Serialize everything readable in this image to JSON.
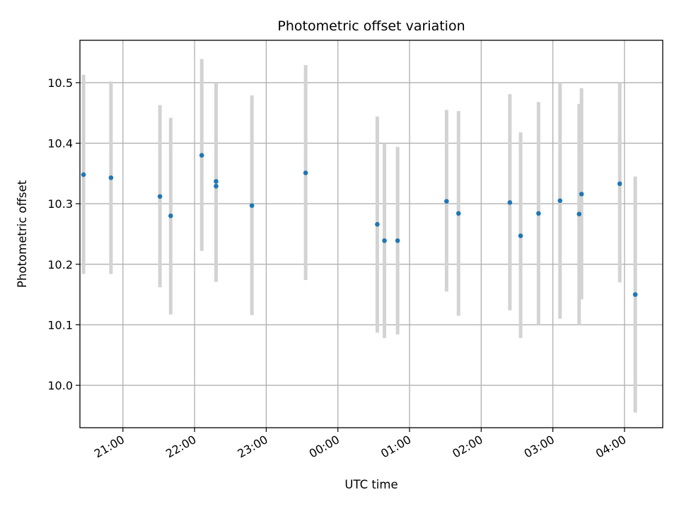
{
  "chart_data": {
    "type": "scatter",
    "title": "Photometric offset variation",
    "xlabel": "UTC time",
    "ylabel": "Photometric offset",
    "x_start": "20:00",
    "xlim": [
      "20:24",
      "04:32"
    ],
    "ylim": [
      9.93,
      10.57
    ],
    "grid": true,
    "x_ticks": [
      "21:00",
      "22:00",
      "23:00",
      "00:00",
      "01:00",
      "02:00",
      "03:00",
      "04:00"
    ],
    "y_ticks": [
      10.0,
      10.1,
      10.2,
      10.3,
      10.4,
      10.5
    ],
    "colors": {
      "points": "#1f77b4",
      "error_bars": "#d3d3d3",
      "grid": "#b0b0b0"
    },
    "series": [
      {
        "points": [
          {
            "x": "20:27",
            "y": 10.348,
            "y_low": 10.184,
            "y_high": 10.513
          },
          {
            "x": "20:50",
            "y": 10.343,
            "y_low": 10.184,
            "y_high": 10.502
          },
          {
            "x": "21:31",
            "y": 10.312,
            "y_low": 10.162,
            "y_high": 10.463
          },
          {
            "x": "21:40",
            "y": 10.28,
            "y_low": 10.117,
            "y_high": 10.442
          },
          {
            "x": "22:06",
            "y": 10.38,
            "y_low": 10.222,
            "y_high": 10.539
          },
          {
            "x": "22:18",
            "y": 10.337,
            "y_low": 10.171,
            "y_high": 10.5
          },
          {
            "x": "22:18",
            "y": 10.329,
            "y_low": 10.171,
            "y_high": 10.5
          },
          {
            "x": "22:48",
            "y": 10.297,
            "y_low": 10.116,
            "y_high": 10.479
          },
          {
            "x": "23:33",
            "y": 10.351,
            "y_low": 10.174,
            "y_high": 10.529
          },
          {
            "x": "00:33",
            "y": 10.266,
            "y_low": 10.087,
            "y_high": 10.444
          },
          {
            "x": "00:39",
            "y": 10.239,
            "y_low": 10.078,
            "y_high": 10.4
          },
          {
            "x": "00:50",
            "y": 10.239,
            "y_low": 10.084,
            "y_high": 10.394
          },
          {
            "x": "01:31",
            "y": 10.304,
            "y_low": 10.155,
            "y_high": 10.455
          },
          {
            "x": "01:41",
            "y": 10.284,
            "y_low": 10.115,
            "y_high": 10.453
          },
          {
            "x": "02:24",
            "y": 10.302,
            "y_low": 10.124,
            "y_high": 10.481
          },
          {
            "x": "02:33",
            "y": 10.247,
            "y_low": 10.078,
            "y_high": 10.418
          },
          {
            "x": "02:48",
            "y": 10.284,
            "y_low": 10.1,
            "y_high": 10.468
          },
          {
            "x": "03:06",
            "y": 10.305,
            "y_low": 10.11,
            "y_high": 10.5
          },
          {
            "x": "03:22",
            "y": 10.283,
            "y_low": 10.1,
            "y_high": 10.465
          },
          {
            "x": "03:24",
            "y": 10.316,
            "y_low": 10.142,
            "y_high": 10.491
          },
          {
            "x": "03:56",
            "y": 10.333,
            "y_low": 10.17,
            "y_high": 10.5
          },
          {
            "x": "04:09",
            "y": 10.15,
            "y_low": 9.955,
            "y_high": 10.345
          }
        ]
      }
    ]
  }
}
